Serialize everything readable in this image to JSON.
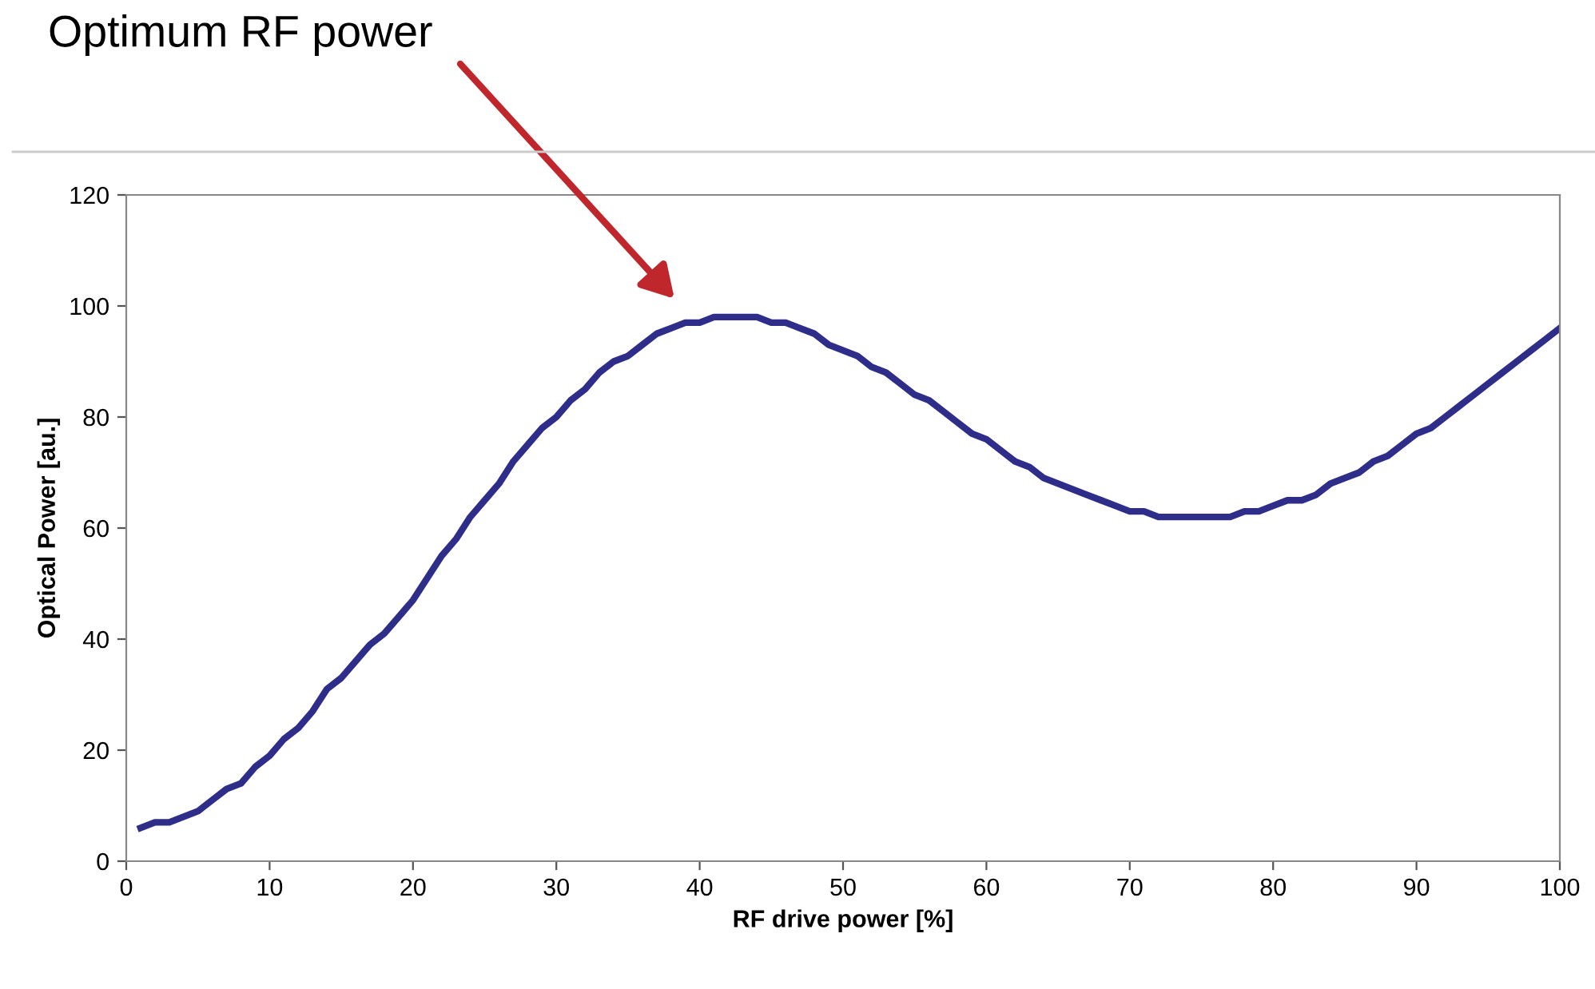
{
  "chart_data": {
    "type": "line",
    "xlabel": "RF drive power [%]",
    "ylabel": "Optical Power [au.]",
    "x": [
      1,
      2,
      3,
      4,
      5,
      6,
      7,
      8,
      9,
      10,
      11,
      12,
      13,
      14,
      15,
      16,
      17,
      18,
      19,
      20,
      21,
      22,
      23,
      24,
      25,
      26,
      27,
      28,
      29,
      30,
      31,
      32,
      33,
      34,
      35,
      36,
      37,
      38,
      39,
      40,
      41,
      42,
      43,
      44,
      45,
      46,
      47,
      48,
      49,
      50,
      51,
      52,
      53,
      54,
      55,
      56,
      57,
      58,
      59,
      60,
      61,
      62,
      63,
      64,
      65,
      66,
      67,
      68,
      69,
      70,
      71,
      72,
      73,
      74,
      75,
      76,
      77,
      78,
      79,
      80,
      81,
      82,
      83,
      84,
      85,
      86,
      87,
      88,
      89,
      90,
      91,
      92,
      93,
      94,
      95,
      96,
      97,
      98,
      99,
      100
    ],
    "series": [
      {
        "color": "#2e2d8a",
        "values": [
          6,
          7,
          7,
          8,
          9,
          11,
          13,
          14,
          17,
          19,
          22,
          24,
          27,
          31,
          33,
          36,
          39,
          41,
          44,
          47,
          51,
          55,
          58,
          62,
          65,
          68,
          72,
          75,
          78,
          80,
          83,
          85,
          88,
          90,
          91,
          93,
          95,
          96,
          97,
          97,
          98,
          98,
          98,
          98,
          97,
          97,
          96,
          95,
          93,
          92,
          91,
          89,
          88,
          86,
          84,
          83,
          81,
          79,
          77,
          76,
          74,
          72,
          71,
          69,
          68,
          67,
          66,
          65,
          64,
          63,
          63,
          62,
          62,
          62,
          62,
          62,
          62,
          63,
          63,
          64,
          65,
          65,
          66,
          68,
          69,
          70,
          72,
          73,
          75,
          77,
          78,
          80,
          82,
          84,
          86,
          88,
          90,
          92,
          94,
          96
        ]
      }
    ],
    "xlim": [
      0,
      100
    ],
    "ylim": [
      0,
      120
    ],
    "xticks": [
      0,
      10,
      20,
      30,
      40,
      50,
      60,
      70,
      80,
      90,
      100
    ],
    "yticks": [
      0,
      20,
      40,
      60,
      80,
      100,
      120
    ],
    "grid": false,
    "legend": false,
    "marker": "none",
    "line_style": "solid",
    "annotations": [
      "Optimum RF power"
    ]
  }
}
